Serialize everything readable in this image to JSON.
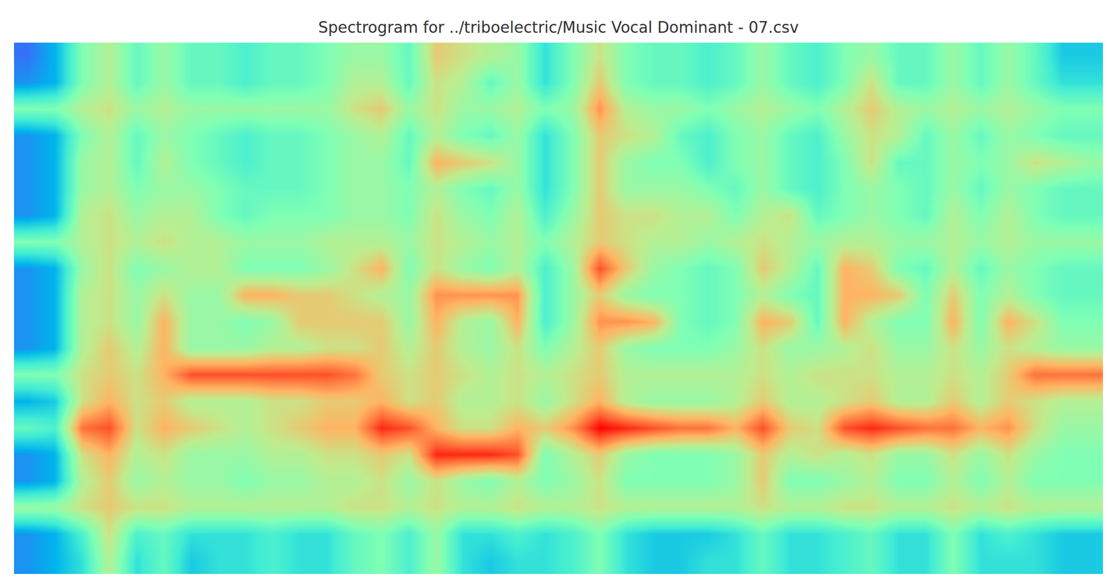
{
  "chart_data": {
    "type": "heatmap",
    "title": "Spectrogram for ../triboelectric/Music Vocal Dominant - 07.csv",
    "tick_labels": false,
    "zlim": [
      0,
      10
    ],
    "cells": [
      [
        1.5,
        2.5,
        5,
        6,
        4.5,
        5.5,
        4.5,
        4.5,
        4,
        4.5,
        4.5,
        5,
        5.5,
        5.5,
        4.5,
        7,
        6.5,
        6,
        5.5,
        3.5,
        5,
        6.5,
        5,
        4.5,
        4.5,
        4,
        4.5,
        5.5,
        4.5,
        4,
        5,
        5.5,
        4.5,
        4.5,
        5.5,
        4.5,
        5.5,
        4.5,
        3,
        3
      ],
      [
        2,
        2.5,
        5,
        6,
        4.5,
        5.5,
        4.5,
        4.5,
        4,
        4.5,
        4.5,
        5,
        6,
        6,
        4.5,
        6.5,
        6,
        4.5,
        5.5,
        3.5,
        5,
        7,
        5,
        4.5,
        4.5,
        4,
        4.5,
        5.5,
        4.5,
        4,
        5,
        6.5,
        4.5,
        4.5,
        5.5,
        4.5,
        5.5,
        4.5,
        3.5,
        3.5
      ],
      [
        5,
        5,
        6,
        6.5,
        5.5,
        6,
        5.5,
        5.5,
        5.5,
        5.5,
        5.5,
        5.5,
        6.5,
        7,
        5.5,
        6.5,
        5.5,
        5.5,
        6,
        5,
        5.5,
        8,
        6,
        5.5,
        5.5,
        5,
        5.5,
        6,
        5.5,
        5,
        6,
        7,
        6,
        5.5,
        6,
        5.5,
        6,
        5.5,
        5,
        5
      ],
      [
        2,
        2.5,
        5,
        6,
        4.5,
        5.5,
        5,
        4.5,
        4,
        4.5,
        4.5,
        5,
        5.5,
        6,
        4.5,
        6,
        5,
        4.5,
        5.5,
        3.5,
        5,
        7,
        6.5,
        6,
        4.5,
        4,
        5,
        5.5,
        4.5,
        4,
        5.5,
        6.5,
        6,
        4.5,
        5.5,
        4.5,
        5.5,
        5,
        4.5,
        4.5
      ],
      [
        2,
        2.5,
        5.5,
        6,
        4.5,
        6,
        5,
        4.5,
        4,
        4.5,
        4.5,
        5,
        5.5,
        5.5,
        4.5,
        7.5,
        7,
        6.5,
        5.5,
        3.5,
        5,
        7,
        5.5,
        5,
        5,
        4,
        5,
        5.5,
        4.5,
        4,
        5,
        6.5,
        4.5,
        4.5,
        5.5,
        5,
        5.5,
        6.5,
        6,
        5.5
      ],
      [
        2,
        2.5,
        5.5,
        6,
        5,
        5.5,
        5.5,
        5,
        4.5,
        4.5,
        4.5,
        5,
        5.5,
        5.5,
        5,
        6,
        5,
        4.5,
        5.5,
        3.5,
        5,
        7,
        5.5,
        5.5,
        5.5,
        5,
        4.5,
        5.5,
        4.5,
        4,
        5,
        5.5,
        5,
        4.5,
        5.5,
        4.5,
        5.5,
        5,
        4.5,
        4.5
      ],
      [
        2,
        2.5,
        6,
        6.5,
        5.5,
        6,
        6,
        5,
        4.5,
        5,
        5,
        5,
        5.5,
        5.5,
        5,
        6.5,
        5.5,
        5,
        6,
        4,
        5.5,
        7,
        6.5,
        6.5,
        6,
        6,
        5,
        6,
        6.5,
        4.5,
        5,
        5.5,
        5,
        4.5,
        6,
        5,
        6,
        5,
        4.5,
        4.5
      ],
      [
        5,
        5,
        6,
        6.5,
        6,
        6.5,
        6,
        6,
        5.5,
        5.5,
        5.5,
        6,
        6,
        6,
        5.5,
        6.5,
        6,
        5.5,
        6,
        5,
        6,
        7,
        6.5,
        6,
        6,
        5.5,
        6,
        6.5,
        6,
        5.5,
        6,
        6,
        5.5,
        5.5,
        6,
        5.5,
        6,
        5.5,
        5.5,
        5.5
      ],
      [
        2,
        2.5,
        5.5,
        6.5,
        5,
        5.5,
        6,
        6,
        5,
        5,
        5,
        5.5,
        6.5,
        7.5,
        5,
        6.5,
        5.5,
        5,
        6,
        4,
        5.5,
        9,
        7,
        5.5,
        5,
        4.5,
        5,
        7,
        6,
        4.5,
        7.5,
        7,
        5,
        4.5,
        6,
        4.5,
        5.5,
        5,
        4.5,
        4.5
      ],
      [
        2,
        2.5,
        6,
        6.5,
        5.5,
        6.5,
        5.5,
        5.5,
        7.5,
        7.5,
        7,
        7,
        6.5,
        6,
        5.5,
        8,
        8,
        8,
        8,
        4,
        5.5,
        7,
        5.5,
        5,
        5,
        4.5,
        5,
        6,
        5,
        4.5,
        7.5,
        7.5,
        7,
        5,
        7,
        5,
        6,
        5,
        4.5,
        4.5
      ],
      [
        2,
        2.5,
        6,
        6.5,
        5.5,
        7.5,
        5.5,
        5.5,
        5,
        5.5,
        7,
        7,
        7,
        7,
        5.5,
        7.5,
        6,
        5.5,
        7.5,
        4,
        5.5,
        8,
        8,
        7.5,
        5,
        4.5,
        5,
        7.5,
        7,
        4.5,
        7.5,
        6,
        5,
        5,
        7.5,
        5,
        7.5,
        6.5,
        5,
        5
      ],
      [
        2,
        2.5,
        6,
        7,
        6,
        7.5,
        5.5,
        5.5,
        5.5,
        6,
        6,
        6.5,
        6.5,
        7,
        6,
        7,
        6,
        5.5,
        6.5,
        5,
        6,
        7,
        5.5,
        5,
        5,
        5,
        5.5,
        6.5,
        5.5,
        5.5,
        6,
        6.5,
        5.5,
        5.5,
        6.5,
        5.5,
        6.5,
        6,
        5.5,
        5.5
      ],
      [
        5,
        5,
        6.5,
        7,
        6.5,
        7.5,
        9,
        9,
        9,
        9,
        9,
        9,
        8.5,
        7,
        6.5,
        7,
        6.5,
        6,
        6.5,
        6,
        6.5,
        7,
        6,
        6,
        6,
        6,
        6,
        6.5,
        6,
        6.5,
        6.5,
        6.5,
        6,
        6,
        6.5,
        6,
        7,
        8.5,
        8.5,
        8.5
      ],
      [
        2.5,
        3,
        6.5,
        7.5,
        6.5,
        7,
        6,
        6,
        6,
        6.5,
        6.5,
        7,
        7,
        7.5,
        6.5,
        7,
        6,
        6,
        6.5,
        5.5,
        6.5,
        7.5,
        6,
        5.5,
        5.5,
        5.5,
        6,
        7,
        6,
        6,
        6.5,
        7,
        6,
        6,
        7,
        6,
        7,
        6.5,
        6,
        6
      ],
      [
        4.5,
        4,
        8.5,
        9,
        6.5,
        7.5,
        7,
        6.5,
        6,
        6.5,
        7,
        7.5,
        7.5,
        9.5,
        9,
        7.5,
        6.5,
        6.5,
        7.5,
        7,
        8,
        10,
        9.5,
        9,
        8.5,
        8.5,
        7.5,
        9,
        7,
        6.5,
        9,
        9.5,
        9,
        8.5,
        8.5,
        7.5,
        8,
        6.5,
        5.5,
        5.5
      ],
      [
        2,
        2.5,
        6.5,
        7.5,
        6,
        6.5,
        5.5,
        5.5,
        5.5,
        6,
        6,
        6.5,
        6.5,
        7,
        6.5,
        9.5,
        9.5,
        9.5,
        9,
        5,
        6,
        7,
        5.5,
        5,
        5,
        5,
        5.5,
        7,
        6,
        6.5,
        6,
        6.5,
        5.5,
        5.5,
        6.5,
        5.5,
        6.5,
        5.5,
        5,
        5
      ],
      [
        2,
        2.5,
        6,
        7,
        5.5,
        6,
        5.5,
        5.5,
        5,
        5.5,
        5.5,
        6,
        6,
        6.5,
        5.5,
        6.5,
        5.5,
        5,
        6,
        5,
        5.5,
        6.5,
        5,
        5,
        5,
        5,
        5.5,
        7,
        5,
        5,
        5.5,
        6,
        5,
        5,
        6,
        5,
        6,
        5,
        5,
        5
      ],
      [
        5.5,
        5.5,
        6.5,
        7,
        6.5,
        6.5,
        6,
        6,
        6,
        6,
        6,
        6,
        6.5,
        6.5,
        6,
        6.5,
        6,
        6,
        6.5,
        6,
        6,
        6.5,
        6,
        6,
        6,
        6,
        6,
        6.5,
        6,
        6,
        6.5,
        6.5,
        6,
        6,
        6.5,
        6,
        6.5,
        6,
        6,
        6
      ],
      [
        2,
        2.5,
        4,
        6.5,
        4,
        4.5,
        3.5,
        3.5,
        3.5,
        4,
        3.5,
        3.5,
        4.5,
        5,
        4,
        5.5,
        3.5,
        3.5,
        4,
        3.5,
        4,
        5,
        3.5,
        3,
        3,
        3,
        3.5,
        4.5,
        3.5,
        3.5,
        4,
        4.5,
        3.5,
        3.5,
        5,
        3.5,
        4,
        3.5,
        3,
        3
      ],
      [
        2,
        2.5,
        3.5,
        6,
        3.5,
        4.5,
        3,
        3.5,
        3.5,
        4,
        3.5,
        3.5,
        4.5,
        5,
        4,
        5.5,
        3.5,
        3,
        3.5,
        3.5,
        4,
        5,
        3.5,
        3,
        3,
        3.5,
        3.5,
        4.5,
        3.5,
        3.5,
        4,
        4.5,
        3.5,
        3.5,
        5,
        3.5,
        3.5,
        3.5,
        3,
        3
      ]
    ]
  }
}
